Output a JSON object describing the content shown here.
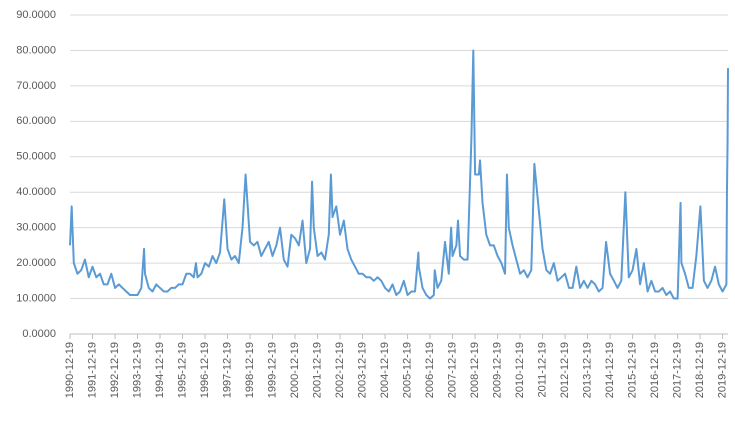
{
  "chart_data": {
    "type": "line",
    "x": [
      "1990-12-19",
      "1991-01-15",
      "1991-02-19",
      "1991-04-19",
      "1991-06-19",
      "1991-08-19",
      "1991-10-19",
      "1991-12-19",
      "1992-02-19",
      "1992-04-19",
      "1992-06-19",
      "1992-08-19",
      "1992-10-19",
      "1992-12-19",
      "1993-02-19",
      "1993-04-19",
      "1993-06-19",
      "1993-08-19",
      "1993-10-19",
      "1993-12-19",
      "1994-02-19",
      "1994-04-04",
      "1994-04-19",
      "1994-06-19",
      "1994-08-19",
      "1994-10-19",
      "1994-12-19",
      "1995-02-19",
      "1995-04-19",
      "1995-06-19",
      "1995-08-19",
      "1995-10-19",
      "1995-12-19",
      "1996-02-19",
      "1996-04-19",
      "1996-06-19",
      "1996-07-24",
      "1996-08-19",
      "1996-10-19",
      "1996-12-19",
      "1997-02-19",
      "1997-04-19",
      "1997-06-19",
      "1997-08-19",
      "1997-10-27",
      "1997-12-19",
      "1998-02-19",
      "1998-04-19",
      "1998-06-19",
      "1998-08-19",
      "1998-10-08",
      "1998-12-19",
      "1999-02-19",
      "1999-04-19",
      "1999-06-19",
      "1999-08-19",
      "1999-10-19",
      "1999-12-19",
      "2000-02-19",
      "2000-04-19",
      "2000-06-19",
      "2000-08-19",
      "2000-10-19",
      "2000-12-19",
      "2001-02-19",
      "2001-04-19",
      "2001-06-19",
      "2001-08-19",
      "2001-09-21",
      "2001-10-19",
      "2001-12-19",
      "2002-02-19",
      "2002-04-19",
      "2002-06-19",
      "2002-07-24",
      "2002-08-19",
      "2002-10-19",
      "2002-12-19",
      "2003-02-19",
      "2003-04-19",
      "2003-06-19",
      "2003-08-19",
      "2003-10-19",
      "2003-12-19",
      "2004-02-19",
      "2004-04-19",
      "2004-06-19",
      "2004-08-19",
      "2004-10-19",
      "2004-12-19",
      "2005-02-19",
      "2005-04-19",
      "2005-06-19",
      "2005-08-19",
      "2005-10-19",
      "2005-12-19",
      "2006-02-19",
      "2006-04-19",
      "2006-06-13",
      "2006-06-19",
      "2006-08-19",
      "2006-10-19",
      "2006-12-19",
      "2007-02-19",
      "2007-03-05",
      "2007-04-19",
      "2007-06-19",
      "2007-08-19",
      "2007-10-19",
      "2007-11-26",
      "2007-12-19",
      "2008-02-19",
      "2008-03-17",
      "2008-04-19",
      "2008-06-19",
      "2008-08-19",
      "2008-10-20",
      "2008-11-20",
      "2008-12-19",
      "2009-02-19",
      "2009-03-09",
      "2009-04-19",
      "2009-06-19",
      "2009-08-19",
      "2009-10-19",
      "2009-12-19",
      "2010-02-19",
      "2010-04-19",
      "2010-05-20",
      "2010-06-19",
      "2010-08-19",
      "2010-10-19",
      "2010-12-19",
      "2011-02-19",
      "2011-04-19",
      "2011-06-19",
      "2011-08-08",
      "2011-10-19",
      "2011-12-19",
      "2012-02-19",
      "2012-04-19",
      "2012-06-19",
      "2012-08-19",
      "2012-10-19",
      "2012-12-19",
      "2013-02-19",
      "2013-04-19",
      "2013-06-19",
      "2013-08-19",
      "2013-10-19",
      "2013-12-19",
      "2014-02-19",
      "2014-04-19",
      "2014-06-19",
      "2014-08-19",
      "2014-10-15",
      "2014-12-19",
      "2015-02-19",
      "2015-04-19",
      "2015-06-19",
      "2015-08-24",
      "2015-10-19",
      "2015-12-19",
      "2016-02-19",
      "2016-04-19",
      "2016-06-19",
      "2016-08-19",
      "2016-10-19",
      "2016-12-19",
      "2017-02-19",
      "2017-04-19",
      "2017-06-19",
      "2017-08-19",
      "2017-10-19",
      "2017-12-19",
      "2018-02-05",
      "2018-02-19",
      "2018-04-19",
      "2018-06-19",
      "2018-08-19",
      "2018-10-19",
      "2018-12-24",
      "2019-02-19",
      "2019-04-19",
      "2019-06-19",
      "2019-08-19",
      "2019-10-19",
      "2019-12-19",
      "2020-02-19",
      "2020-02-28",
      "2020-03-09",
      "2020-03-16"
    ],
    "series": [
      {
        "color": "#5b9bd5",
        "values": [
          25,
          36,
          20,
          17,
          18,
          21,
          16,
          19,
          16,
          17,
          14,
          14,
          17,
          13,
          14,
          13,
          12,
          11,
          11,
          11,
          13,
          24,
          17,
          13,
          12,
          14,
          13,
          12,
          12,
          13,
          13,
          14,
          14,
          17,
          17,
          16,
          20,
          16,
          17,
          20,
          19,
          22,
          20,
          23,
          38,
          24,
          21,
          22,
          20,
          30,
          45,
          26,
          25,
          26,
          22,
          24,
          26,
          22,
          25,
          30,
          21,
          19,
          28,
          27,
          25,
          32,
          20,
          24,
          43,
          30,
          22,
          23,
          21,
          28,
          45,
          33,
          36,
          28,
          32,
          24,
          21,
          19,
          17,
          17,
          16,
          16,
          15,
          16,
          15,
          13,
          12,
          14,
          11,
          12,
          15,
          11,
          12,
          12,
          23,
          19,
          13,
          11,
          10,
          11,
          18,
          13,
          15,
          26,
          17,
          30,
          22,
          25,
          32,
          22,
          21,
          21,
          55,
          80,
          45,
          45,
          49,
          37,
          28,
          25,
          25,
          22,
          20,
          17,
          45,
          30,
          25,
          21,
          17,
          18,
          16,
          18,
          48,
          35,
          24,
          18,
          17,
          20,
          15,
          16,
          17,
          13,
          13,
          19,
          13,
          15,
          13,
          15,
          14,
          12,
          13,
          26,
          17,
          15,
          13,
          15,
          40,
          16,
          18,
          24,
          14,
          20,
          12,
          15,
          12,
          12,
          13,
          11,
          12,
          10,
          10,
          37,
          20,
          17,
          13,
          13,
          22,
          36,
          15,
          13,
          15,
          19,
          14,
          12,
          14,
          40,
          54,
          75
        ]
      }
    ],
    "xlim": [
      "1990-12-19",
      "2020-03-16"
    ],
    "xticks": [
      "1990-12-19",
      "1991-12-19",
      "1992-12-19",
      "1993-12-19",
      "1994-12-19",
      "1995-12-19",
      "1996-12-19",
      "1997-12-19",
      "1998-12-19",
      "1999-12-19",
      "2000-12-19",
      "2001-12-19",
      "2002-12-19",
      "2003-12-19",
      "2004-12-19",
      "2005-12-19",
      "2006-12-19",
      "2007-12-19",
      "2008-12-19",
      "2009-12-19",
      "2010-12-19",
      "2011-12-19",
      "2012-12-19",
      "2013-12-19",
      "2014-12-19",
      "2015-12-19",
      "2016-12-19",
      "2017-12-19",
      "2018-12-19",
      "2019-12-19"
    ],
    "ylim": [
      0,
      90
    ],
    "yticks": [
      {
        "value": 0,
        "label": "0.0000"
      },
      {
        "value": 10,
        "label": "10.0000"
      },
      {
        "value": 20,
        "label": "20.0000"
      },
      {
        "value": 30,
        "label": "30.0000"
      },
      {
        "value": 40,
        "label": "40.0000"
      },
      {
        "value": 50,
        "label": "50.0000"
      },
      {
        "value": 60,
        "label": "60.0000"
      },
      {
        "value": 70,
        "label": "70.0000"
      },
      {
        "value": 80,
        "label": "80.0000"
      },
      {
        "value": 90,
        "label": "90.0000"
      }
    ],
    "grid": true
  }
}
